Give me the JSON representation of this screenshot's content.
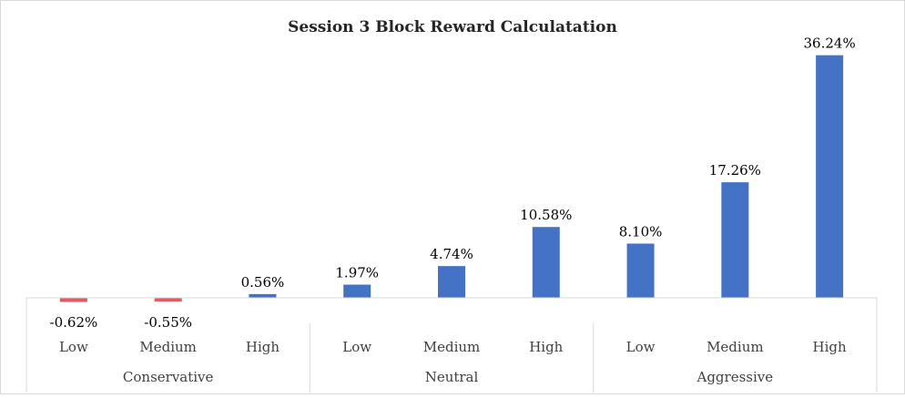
{
  "chart_data": {
    "type": "bar",
    "title": "Session 3 Block Reward Calculatation",
    "groups": [
      {
        "name": "Conservative",
        "categories": [
          "Low",
          "Medium",
          "High"
        ]
      },
      {
        "name": "Neutral",
        "categories": [
          "Low",
          "Medium",
          "High"
        ]
      },
      {
        "name": "Aggressive",
        "categories": [
          "Low",
          "Medium",
          "High"
        ]
      }
    ],
    "values": [
      -0.62,
      -0.55,
      0.56,
      1.97,
      4.74,
      10.58,
      8.1,
      17.26,
      36.24
    ],
    "data_labels": [
      "-0.62%",
      "-0.55%",
      "0.56%",
      "1.97%",
      "4.74%",
      "10.58%",
      "8.10%",
      "17.26%",
      "36.24%"
    ],
    "ylim": [
      -1,
      40
    ],
    "grid": false,
    "legend": "none",
    "colors": {
      "positive": "#4472C4",
      "negative": "#E05A64",
      "axis": "#d9d9d9"
    }
  }
}
